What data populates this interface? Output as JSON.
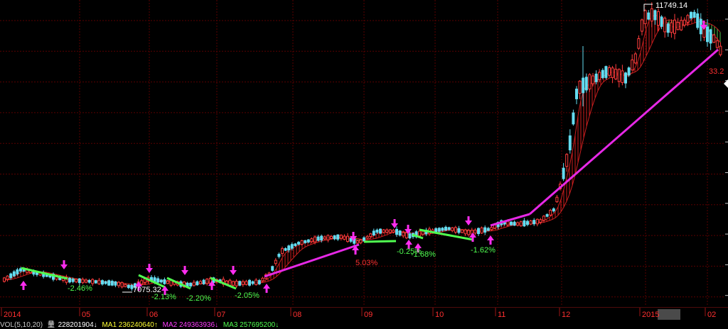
{
  "colors": {
    "background": "#000000",
    "grid": "#5a0000",
    "axis": "#9b1414",
    "up": "#ff3c3c",
    "down": "#64dcf0",
    "ribbon_red": "#c81e1e",
    "ribbon_green": "#50c850",
    "trend_up": "#e628e6",
    "trend_down": "#50ff50",
    "arrow": "#ff2df0",
    "label_pos": "#ff3030",
    "label_neg": "#50ff50",
    "value_label": "#ffffff"
  },
  "chart_data": {
    "type": "candlestick",
    "x_labels": [
      "2014",
      "05",
      "06",
      "07",
      "08",
      "09",
      "10",
      "11",
      "12",
      "2015",
      "02"
    ],
    "highlighted_x_label": "2015",
    "grid": true,
    "annotations": {
      "max_price": "11749.14",
      "min_price": "7075.32",
      "right_edge": "33.2",
      "trend_labels": [
        "-2.46%",
        "-2.13%",
        "-2.20%",
        "-2.05%",
        "5.03%",
        "-0.25%",
        "-1.68%",
        "-1.62%"
      ]
    }
  },
  "volume_bar": {
    "title": "VOL(5,10,20)",
    "volume_label": "量",
    "volume_value": "228201904↓",
    "ma1": "MA1 236240640↑",
    "ma2": "MA2 249363936↓",
    "ma3": "MA3 257695200↓"
  }
}
